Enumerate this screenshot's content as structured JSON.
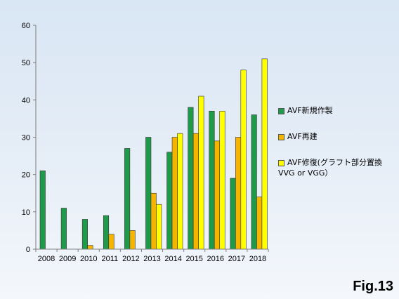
{
  "chart_data": {
    "type": "bar",
    "title": "",
    "xlabel": "",
    "ylabel": "",
    "ylim": [
      0,
      60
    ],
    "yticks": [
      0,
      10,
      20,
      30,
      40,
      50,
      60
    ],
    "grid": false,
    "legend_position": "right",
    "categories": [
      "2008",
      "2009",
      "2010",
      "2011",
      "2012",
      "2013",
      "2014",
      "2015",
      "2016",
      "2017",
      "2018"
    ],
    "series": [
      {
        "name": "AVF新規作製",
        "color": "#1e9a4a",
        "values": [
          21,
          11,
          8,
          9,
          27,
          30,
          26,
          38,
          37,
          19,
          36
        ]
      },
      {
        "name": "AVF再建",
        "color": "#f5b400",
        "values": [
          0,
          0,
          1,
          4,
          5,
          15,
          30,
          31,
          29,
          30,
          14
        ]
      },
      {
        "name": "AVF修復(グラフト部分置換",
        "name_line2": "VVG or VGG）",
        "color": "#ffff00",
        "values": [
          0,
          0,
          0,
          0,
          0,
          12,
          31,
          41,
          37,
          48,
          51
        ]
      }
    ]
  },
  "figure_label": "Fig.13"
}
